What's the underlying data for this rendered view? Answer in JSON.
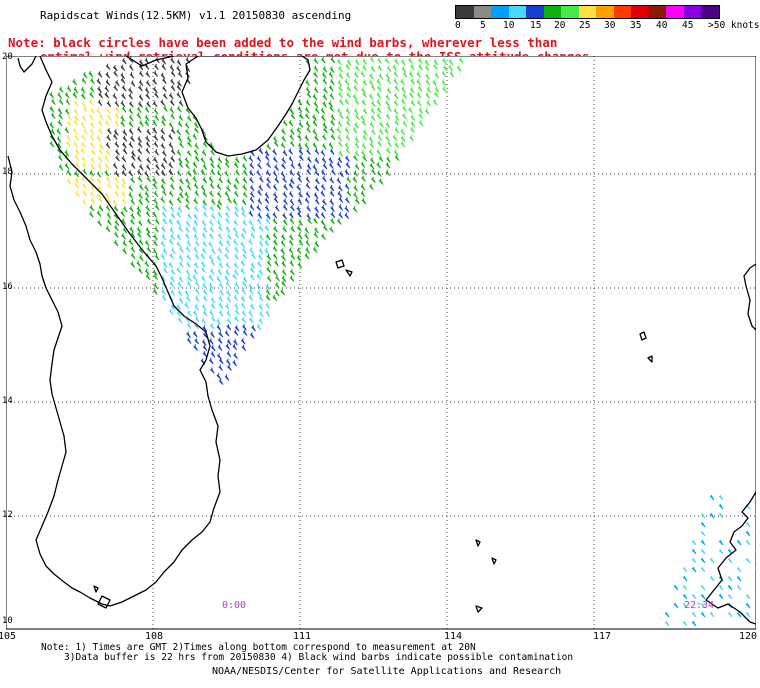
{
  "header": {
    "title": "Rapidscat Winds(12.5KM) v1.1 20150830 ascending",
    "note_line1": "Note: black circles have been added to the wind barbs, wherever less than",
    "note_line2": "optimal wind retrieval conditions are met due to the ISS attitude changes."
  },
  "colorbar": {
    "colors": [
      "#3a3a3a",
      "#8a8a8a",
      "#00a0ff",
      "#48d8ff",
      "#1a3fd0",
      "#10b010",
      "#48e848",
      "#ffe040",
      "#ffa000",
      "#ff3a00",
      "#e00000",
      "#8a1a00",
      "#ff00ff",
      "#8a00e8",
      "#4a0088"
    ],
    "labels": [
      "0",
      "5",
      "10",
      "15",
      "20",
      "25",
      "30",
      "35",
      "40",
      "45",
      ">50 knots"
    ]
  },
  "map": {
    "lon_labels": [
      "105",
      "108",
      "111",
      "114",
      "117",
      "120"
    ],
    "lat_labels": [
      "20",
      "18",
      "16",
      "14",
      "12",
      "10"
    ],
    "time_labels": [
      "0:00",
      "22:34"
    ]
  },
  "footer": {
    "line1": "Note: 1) Times are GMT 2)Times along bottom correspond to measurement at 20N",
    "line2": "3)Data buffer is 22 hrs from 20150830 4) Black wind barbs indicate possible contamination",
    "credit": "NOAA/NESDIS/Center for Satellite Applications and Research"
  }
}
